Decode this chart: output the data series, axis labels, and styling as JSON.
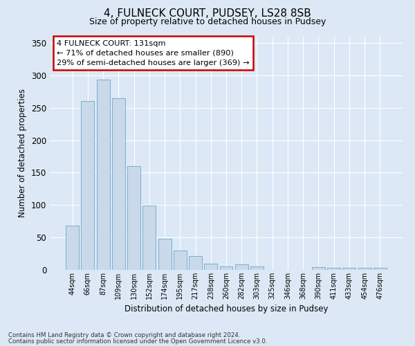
{
  "title": "4, FULNECK COURT, PUDSEY, LS28 8SB",
  "subtitle": "Size of property relative to detached houses in Pudsey",
  "xlabel": "Distribution of detached houses by size in Pudsey",
  "ylabel": "Number of detached properties",
  "bar_color": "#c9d9ea",
  "bar_edge_color": "#7aaed0",
  "annotation_text": "4 FULNECK COURT: 131sqm\n← 71% of detached houses are smaller (890)\n29% of semi-detached houses are larger (369) →",
  "annotation_box_facecolor": "#ffffff",
  "annotation_box_edgecolor": "#cc0000",
  "bg_color": "#dce8f5",
  "grid_color": "#ffffff",
  "categories": [
    "44sqm",
    "66sqm",
    "87sqm",
    "109sqm",
    "130sqm",
    "152sqm",
    "174sqm",
    "195sqm",
    "217sqm",
    "238sqm",
    "260sqm",
    "282sqm",
    "303sqm",
    "325sqm",
    "346sqm",
    "368sqm",
    "390sqm",
    "411sqm",
    "433sqm",
    "454sqm",
    "476sqm"
  ],
  "values": [
    68,
    260,
    293,
    265,
    160,
    99,
    48,
    30,
    21,
    10,
    5,
    9,
    5,
    0,
    0,
    0,
    4,
    3,
    3,
    3,
    3
  ],
  "ylim": [
    0,
    360
  ],
  "yticks": [
    0,
    50,
    100,
    150,
    200,
    250,
    300,
    350
  ],
  "footer_line1": "Contains HM Land Registry data © Crown copyright and database right 2024.",
  "footer_line2": "Contains public sector information licensed under the Open Government Licence v3.0."
}
